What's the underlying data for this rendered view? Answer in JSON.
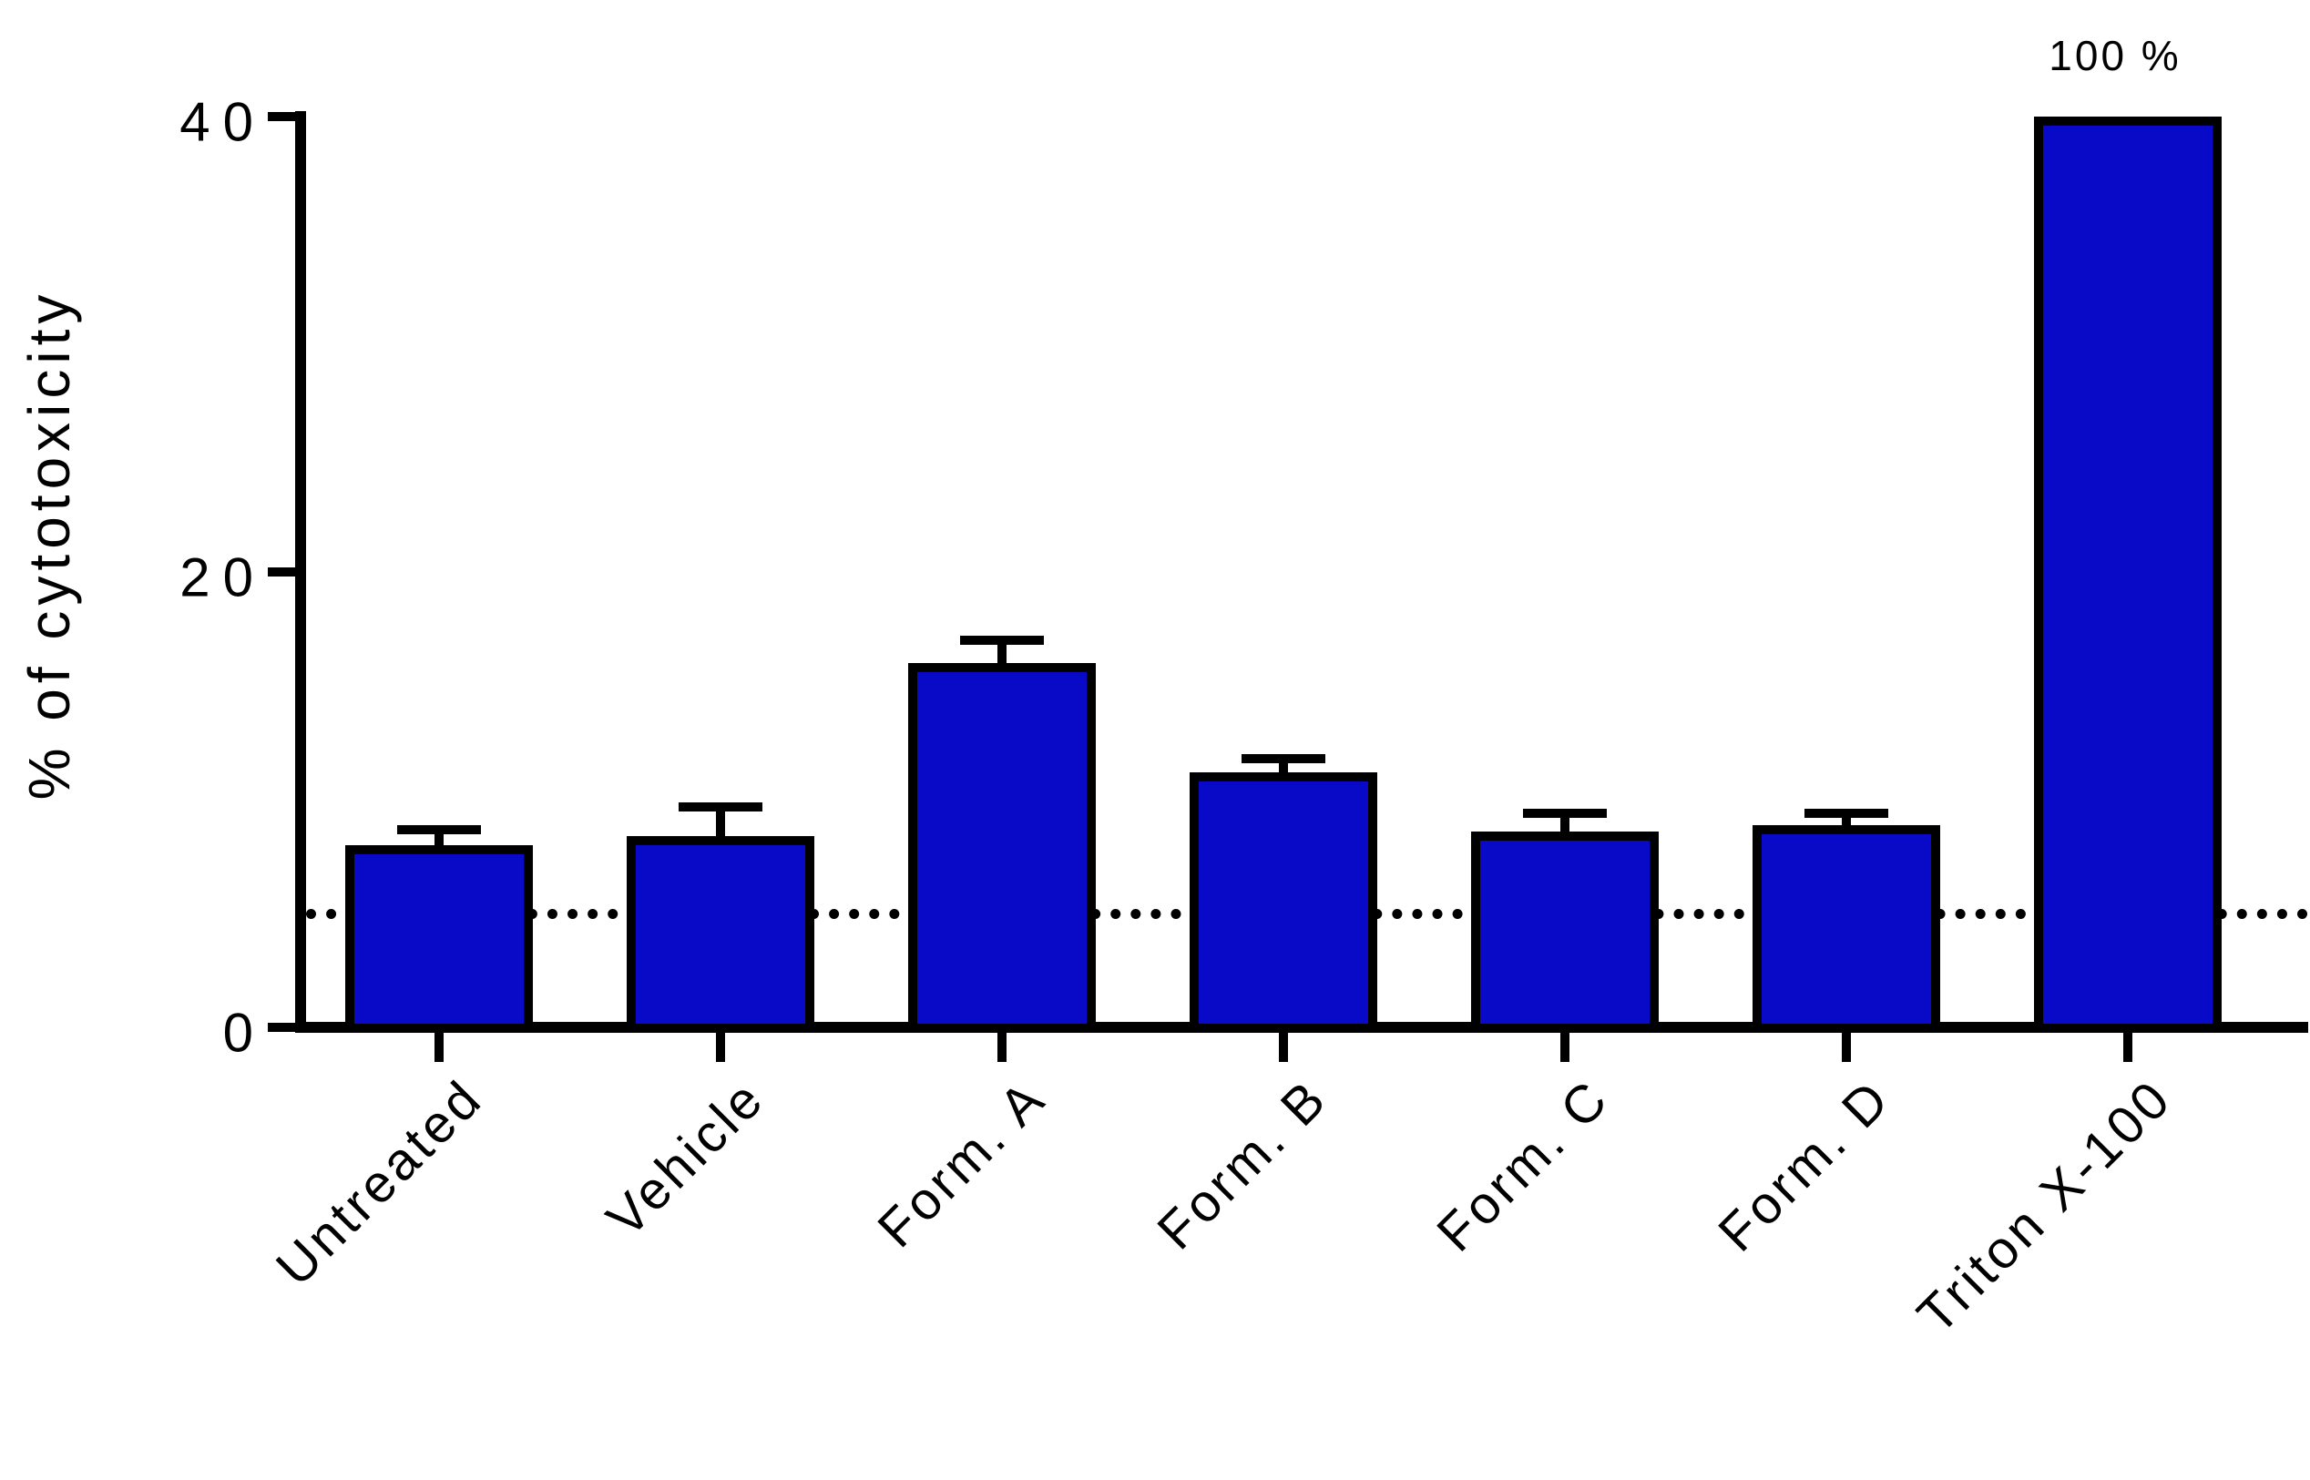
{
  "y_axis": {
    "label": "% of cytotoxicity",
    "ticks": [
      0,
      20,
      40
    ]
  },
  "chart_data": {
    "type": "bar",
    "title": "",
    "ylabel": "% of cytotoxicity",
    "xlabel": "",
    "categories": [
      "Untreated",
      "Vehicle",
      "Form. A",
      "Form. B",
      "Form. C",
      "Form. D",
      "Triton X-100"
    ],
    "values": [
      8.0,
      8.4,
      16.0,
      11.2,
      8.6,
      8.9,
      100
    ],
    "error_plus": [
      0.7,
      1.3,
      1.0,
      0.6,
      0.8,
      0.5,
      0
    ],
    "ylim": [
      0,
      40
    ],
    "threshold_y": 5,
    "bar_color": "#0909C8",
    "axis_color": "#000000",
    "grid": false,
    "legend_position": "none",
    "clipped_bar_annotation": {
      "text": "100 %",
      "bar_index": 6
    }
  }
}
